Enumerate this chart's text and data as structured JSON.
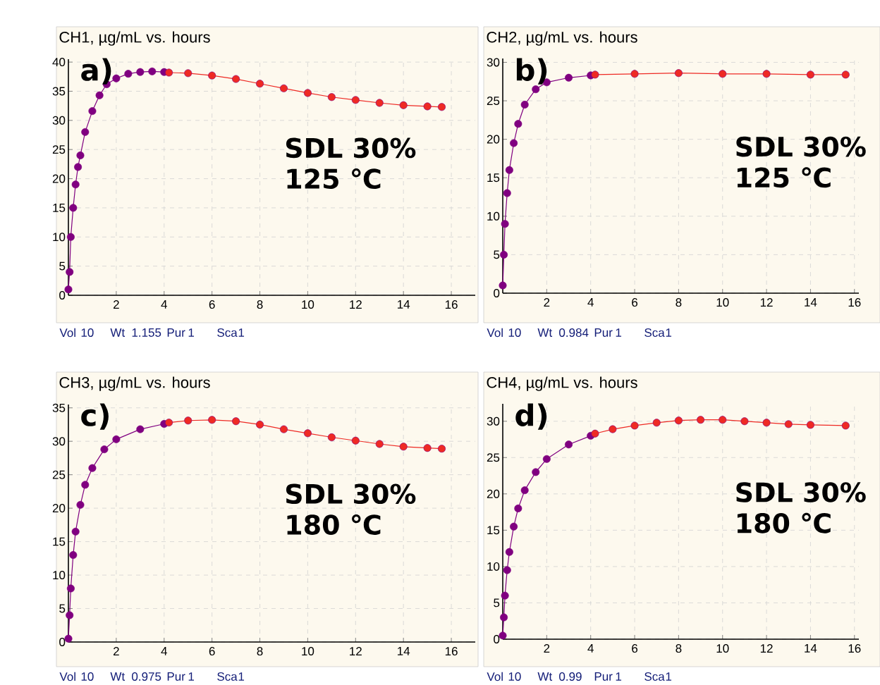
{
  "chart_data": [
    {
      "type": "line",
      "title": "CH1, µg/mL vs. hours",
      "xlim": [
        0,
        17
      ],
      "ylim": [
        0,
        40.5
      ],
      "xticks": [
        2,
        4,
        6,
        8,
        10,
        12,
        14,
        16
      ],
      "yticks": [
        0,
        5,
        10,
        15,
        20,
        25,
        30,
        35,
        40
      ],
      "grid": true,
      "marker": "circle",
      "annotations": [
        "a)",
        "SDL 30%",
        "125 ℃",
        "Vol",
        "10",
        "Wt",
        "1.155",
        "Pur",
        "1",
        "Sca",
        "1"
      ],
      "series": [
        {
          "color": "#800080",
          "x": [
            0,
            0.05,
            0.1,
            0.2,
            0.3,
            0.4,
            0.5,
            0.7,
            1.0,
            1.3,
            1.6,
            2,
            2.5,
            3,
            3.5,
            4
          ],
          "values": [
            1,
            4,
            10,
            15,
            19,
            22,
            24,
            28,
            31.6,
            34.3,
            36.2,
            37.2,
            38,
            38.3,
            38.4,
            38.3
          ]
        },
        {
          "color": "#ee2a24",
          "x": [
            4.2,
            5,
            6,
            7,
            8,
            9,
            10,
            11,
            12,
            13,
            14,
            15,
            15.6
          ],
          "values": [
            38.2,
            38.1,
            37.7,
            37.1,
            36.3,
            35.5,
            34.7,
            34.0,
            33.5,
            33.0,
            32.6,
            32.4,
            32.3
          ]
        }
      ]
    },
    {
      "type": "line",
      "title": "CH2, µg/mL vs. hours",
      "xlim": [
        0,
        16.2
      ],
      "ylim": [
        0,
        30.5
      ],
      "xticks": [
        2,
        4,
        6,
        8,
        10,
        12,
        14,
        16
      ],
      "yticks": [
        0,
        5,
        10,
        15,
        20,
        25,
        30
      ],
      "grid": true,
      "marker": "circle",
      "annotations": [
        "b)",
        "SDL 30%",
        "125 ℃",
        "Vol",
        "10",
        "Wt",
        "0.984",
        "Pur",
        "1",
        "Sca",
        "1"
      ],
      "series": [
        {
          "color": "#800080",
          "x": [
            0,
            0.05,
            0.1,
            0.2,
            0.3,
            0.5,
            0.7,
            1.0,
            1.5,
            2,
            3,
            4
          ],
          "values": [
            1,
            5,
            9,
            13,
            16,
            19.5,
            22,
            24.5,
            26.5,
            27.4,
            28,
            28.3
          ]
        },
        {
          "color": "#ee2a24",
          "x": [
            4.2,
            6,
            8,
            10,
            12,
            14,
            15.6
          ],
          "values": [
            28.4,
            28.5,
            28.6,
            28.5,
            28.5,
            28.4,
            28.4
          ]
        }
      ]
    },
    {
      "type": "line",
      "title": "CH3, µg/mL vs. hours",
      "xlim": [
        0,
        17
      ],
      "ylim": [
        0,
        35.5
      ],
      "xticks": [
        2,
        4,
        6,
        8,
        10,
        12,
        14,
        16
      ],
      "yticks": [
        0,
        5,
        10,
        15,
        20,
        25,
        30,
        35
      ],
      "grid": true,
      "marker": "circle",
      "annotations": [
        "c)",
        "SDL 30%",
        "180 ℃",
        "Vol",
        "10",
        "Wt",
        "0.975",
        "Pur",
        "1",
        "Sca",
        "1"
      ],
      "series": [
        {
          "color": "#800080",
          "x": [
            0,
            0.05,
            0.1,
            0.2,
            0.3,
            0.5,
            0.7,
            1.0,
            1.5,
            2,
            3,
            4
          ],
          "values": [
            0.5,
            4,
            8,
            13,
            16.5,
            20.5,
            23.5,
            26,
            28.8,
            30.3,
            31.8,
            32.6
          ]
        },
        {
          "color": "#ee2a24",
          "x": [
            4.2,
            5,
            6,
            7,
            8,
            9,
            10,
            11,
            12,
            13,
            14,
            15,
            15.6
          ],
          "values": [
            32.8,
            33.1,
            33.2,
            33.0,
            32.5,
            31.8,
            31.2,
            30.6,
            30.1,
            29.6,
            29.2,
            29.0,
            28.9
          ]
        }
      ]
    },
    {
      "type": "line",
      "title": "CH4, µg/mL vs. hours",
      "xlim": [
        0,
        16.2
      ],
      "ylim": [
        0,
        32.4
      ],
      "xticks": [
        2,
        4,
        6,
        8,
        10,
        12,
        14,
        16
      ],
      "yticks": [
        0,
        5,
        10,
        15,
        20,
        25,
        30
      ],
      "grid": true,
      "marker": "circle",
      "annotations": [
        "d)",
        "SDL 30%",
        "180 ℃",
        "Vol",
        "10",
        "Wt",
        "0.99",
        "Pur",
        "1",
        "Sca",
        "1"
      ],
      "series": [
        {
          "color": "#800080",
          "x": [
            0,
            0.05,
            0.1,
            0.2,
            0.3,
            0.5,
            0.7,
            1.0,
            1.5,
            2,
            3,
            4
          ],
          "values": [
            0.5,
            3,
            6,
            9.5,
            12,
            15.5,
            18,
            20.5,
            23,
            24.8,
            26.8,
            28
          ]
        },
        {
          "color": "#ee2a24",
          "x": [
            4.2,
            5,
            6,
            7,
            8,
            9,
            10,
            11,
            12,
            13,
            14,
            15.6
          ],
          "values": [
            28.3,
            28.9,
            29.4,
            29.8,
            30.1,
            30.2,
            30.2,
            30.0,
            29.8,
            29.6,
            29.5,
            29.4
          ]
        }
      ]
    }
  ]
}
